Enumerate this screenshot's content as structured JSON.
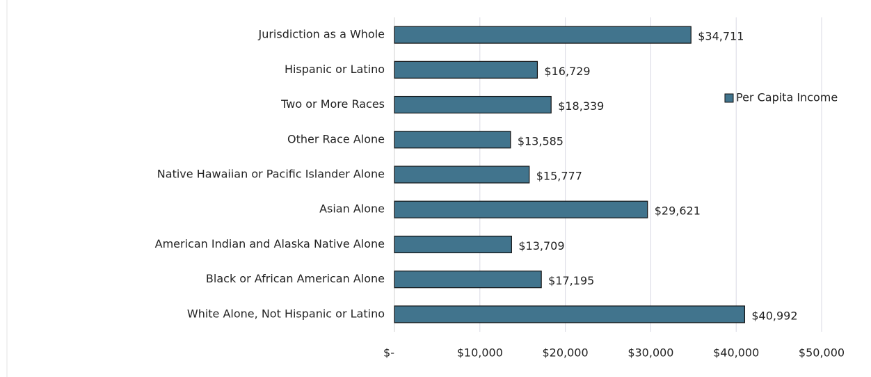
{
  "chart_data": {
    "type": "bar",
    "orientation": "horizontal",
    "categories": [
      "Jurisdiction as a Whole",
      "Hispanic or Latino",
      "Two or More Races",
      "Other Race Alone",
      "Native Hawaiian or Pacific Islander Alone",
      "Asian Alone",
      "American Indian and Alaska Native Alone",
      "Black or African American Alone",
      "White Alone, Not Hispanic or Latino"
    ],
    "series": [
      {
        "name": "Per Capita Income",
        "color": "#41748d",
        "values": [
          34711,
          16729,
          18339,
          13585,
          15777,
          29621,
          13709,
          17195,
          40992
        ],
        "value_labels": [
          "$34,711",
          "$16,729",
          "$18,339",
          "$13,585",
          "$15,777",
          "$29,621",
          "$13,709",
          "$17,195",
          "$40,992"
        ]
      }
    ],
    "xlim": [
      0,
      50000
    ],
    "xticks": [
      {
        "value": 0,
        "label": "$-"
      },
      {
        "value": 10000,
        "label": "$10,000"
      },
      {
        "value": 20000,
        "label": "$20,000"
      },
      {
        "value": 30000,
        "label": "$30,000"
      },
      {
        "value": 40000,
        "label": "$40,000"
      },
      {
        "value": 50000,
        "label": "$50,000"
      }
    ],
    "grid": true,
    "legend": "right"
  }
}
